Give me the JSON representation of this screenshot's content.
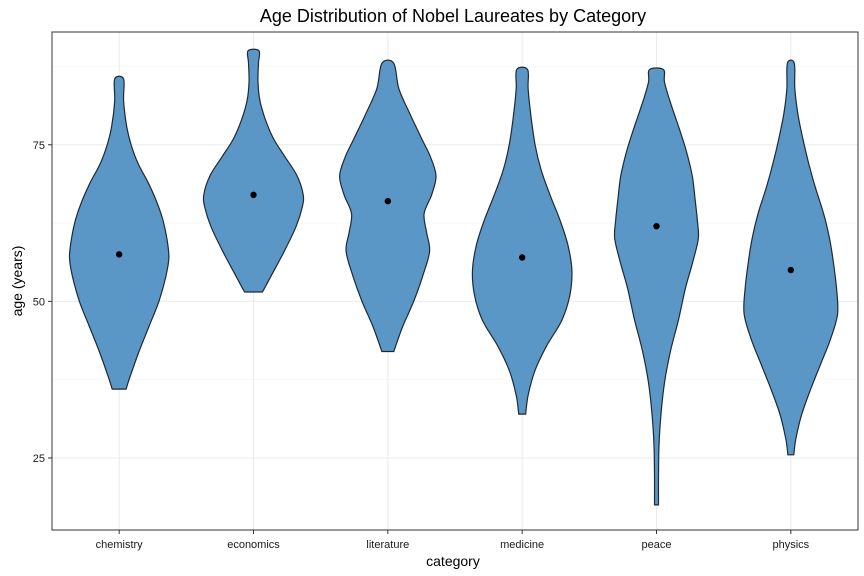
{
  "chart_data": {
    "type": "violin",
    "title": "Age Distribution of Nobel Laureates by Category",
    "xlabel": "category",
    "ylabel": "age (years)",
    "ylim": [
      13.5,
      93
    ],
    "yticks": [
      25,
      50,
      75
    ],
    "grid": true,
    "fill_color": "#5a97c6",
    "outline_color": "#1f2a33",
    "categories": [
      "chemistry",
      "economics",
      "literature",
      "medicine",
      "peace",
      "physics"
    ],
    "series": [
      {
        "category": "chemistry",
        "min": 36,
        "max": 85.5,
        "center_point": 57.5,
        "density_profile": [
          [
            36,
            0.14
          ],
          [
            38,
            0.22
          ],
          [
            42,
            0.4
          ],
          [
            46,
            0.6
          ],
          [
            50,
            0.8
          ],
          [
            54,
            0.94
          ],
          [
            57,
            1.0
          ],
          [
            60,
            0.96
          ],
          [
            63,
            0.88
          ],
          [
            66,
            0.75
          ],
          [
            69,
            0.58
          ],
          [
            72,
            0.38
          ],
          [
            75,
            0.24
          ],
          [
            78,
            0.15
          ],
          [
            82,
            0.09
          ],
          [
            85.5,
            0.09
          ]
        ]
      },
      {
        "category": "economics",
        "min": 51.5,
        "max": 90,
        "center_point": 67,
        "density_profile": [
          [
            51.5,
            0.18
          ],
          [
            54,
            0.35
          ],
          [
            58,
            0.62
          ],
          [
            62,
            0.86
          ],
          [
            65,
            0.98
          ],
          [
            67,
            1.0
          ],
          [
            70,
            0.88
          ],
          [
            73,
            0.64
          ],
          [
            76,
            0.4
          ],
          [
            79,
            0.24
          ],
          [
            82,
            0.13
          ],
          [
            85,
            0.09
          ],
          [
            88,
            0.1
          ],
          [
            90,
            0.11
          ]
        ]
      },
      {
        "category": "literature",
        "min": 42,
        "max": 88,
        "center_point": 66,
        "density_profile": [
          [
            42,
            0.12
          ],
          [
            46,
            0.3
          ],
          [
            50,
            0.52
          ],
          [
            54,
            0.7
          ],
          [
            58,
            0.84
          ],
          [
            61,
            0.78
          ],
          [
            64,
            0.73
          ],
          [
            67,
            0.88
          ],
          [
            70,
            0.97
          ],
          [
            73,
            0.86
          ],
          [
            76,
            0.68
          ],
          [
            80,
            0.44
          ],
          [
            84,
            0.22
          ],
          [
            88,
            0.12
          ]
        ]
      },
      {
        "category": "medicine",
        "min": 32,
        "max": 87,
        "center_point": 57,
        "density_profile": [
          [
            32,
            0.07
          ],
          [
            35,
            0.12
          ],
          [
            39,
            0.26
          ],
          [
            43,
            0.5
          ],
          [
            47,
            0.8
          ],
          [
            51,
            0.96
          ],
          [
            55,
            1.0
          ],
          [
            59,
            0.92
          ],
          [
            63,
            0.76
          ],
          [
            67,
            0.56
          ],
          [
            71,
            0.38
          ],
          [
            75,
            0.26
          ],
          [
            80,
            0.17
          ],
          [
            84,
            0.12
          ],
          [
            87,
            0.11
          ]
        ]
      },
      {
        "category": "peace",
        "min": 17.5,
        "max": 87,
        "center_point": 62,
        "density_profile": [
          [
            17.5,
            0.04
          ],
          [
            22,
            0.04
          ],
          [
            27,
            0.05
          ],
          [
            32,
            0.09
          ],
          [
            37,
            0.16
          ],
          [
            42,
            0.28
          ],
          [
            47,
            0.44
          ],
          [
            52,
            0.58
          ],
          [
            56,
            0.72
          ],
          [
            60,
            0.84
          ],
          [
            63,
            0.82
          ],
          [
            66,
            0.78
          ],
          [
            70,
            0.72
          ],
          [
            74,
            0.6
          ],
          [
            78,
            0.44
          ],
          [
            82,
            0.27
          ],
          [
            85,
            0.16
          ],
          [
            87,
            0.14
          ]
        ]
      },
      {
        "category": "physics",
        "min": 25.5,
        "max": 88,
        "center_point": 55,
        "density_profile": [
          [
            25.5,
            0.06
          ],
          [
            28,
            0.1
          ],
          [
            32,
            0.22
          ],
          [
            36,
            0.4
          ],
          [
            40,
            0.6
          ],
          [
            44,
            0.8
          ],
          [
            48,
            0.94
          ],
          [
            52,
            0.92
          ],
          [
            56,
            0.86
          ],
          [
            60,
            0.78
          ],
          [
            64,
            0.66
          ],
          [
            68,
            0.5
          ],
          [
            72,
            0.36
          ],
          [
            76,
            0.24
          ],
          [
            80,
            0.14
          ],
          [
            84,
            0.08
          ],
          [
            88,
            0.07
          ]
        ]
      }
    ]
  }
}
